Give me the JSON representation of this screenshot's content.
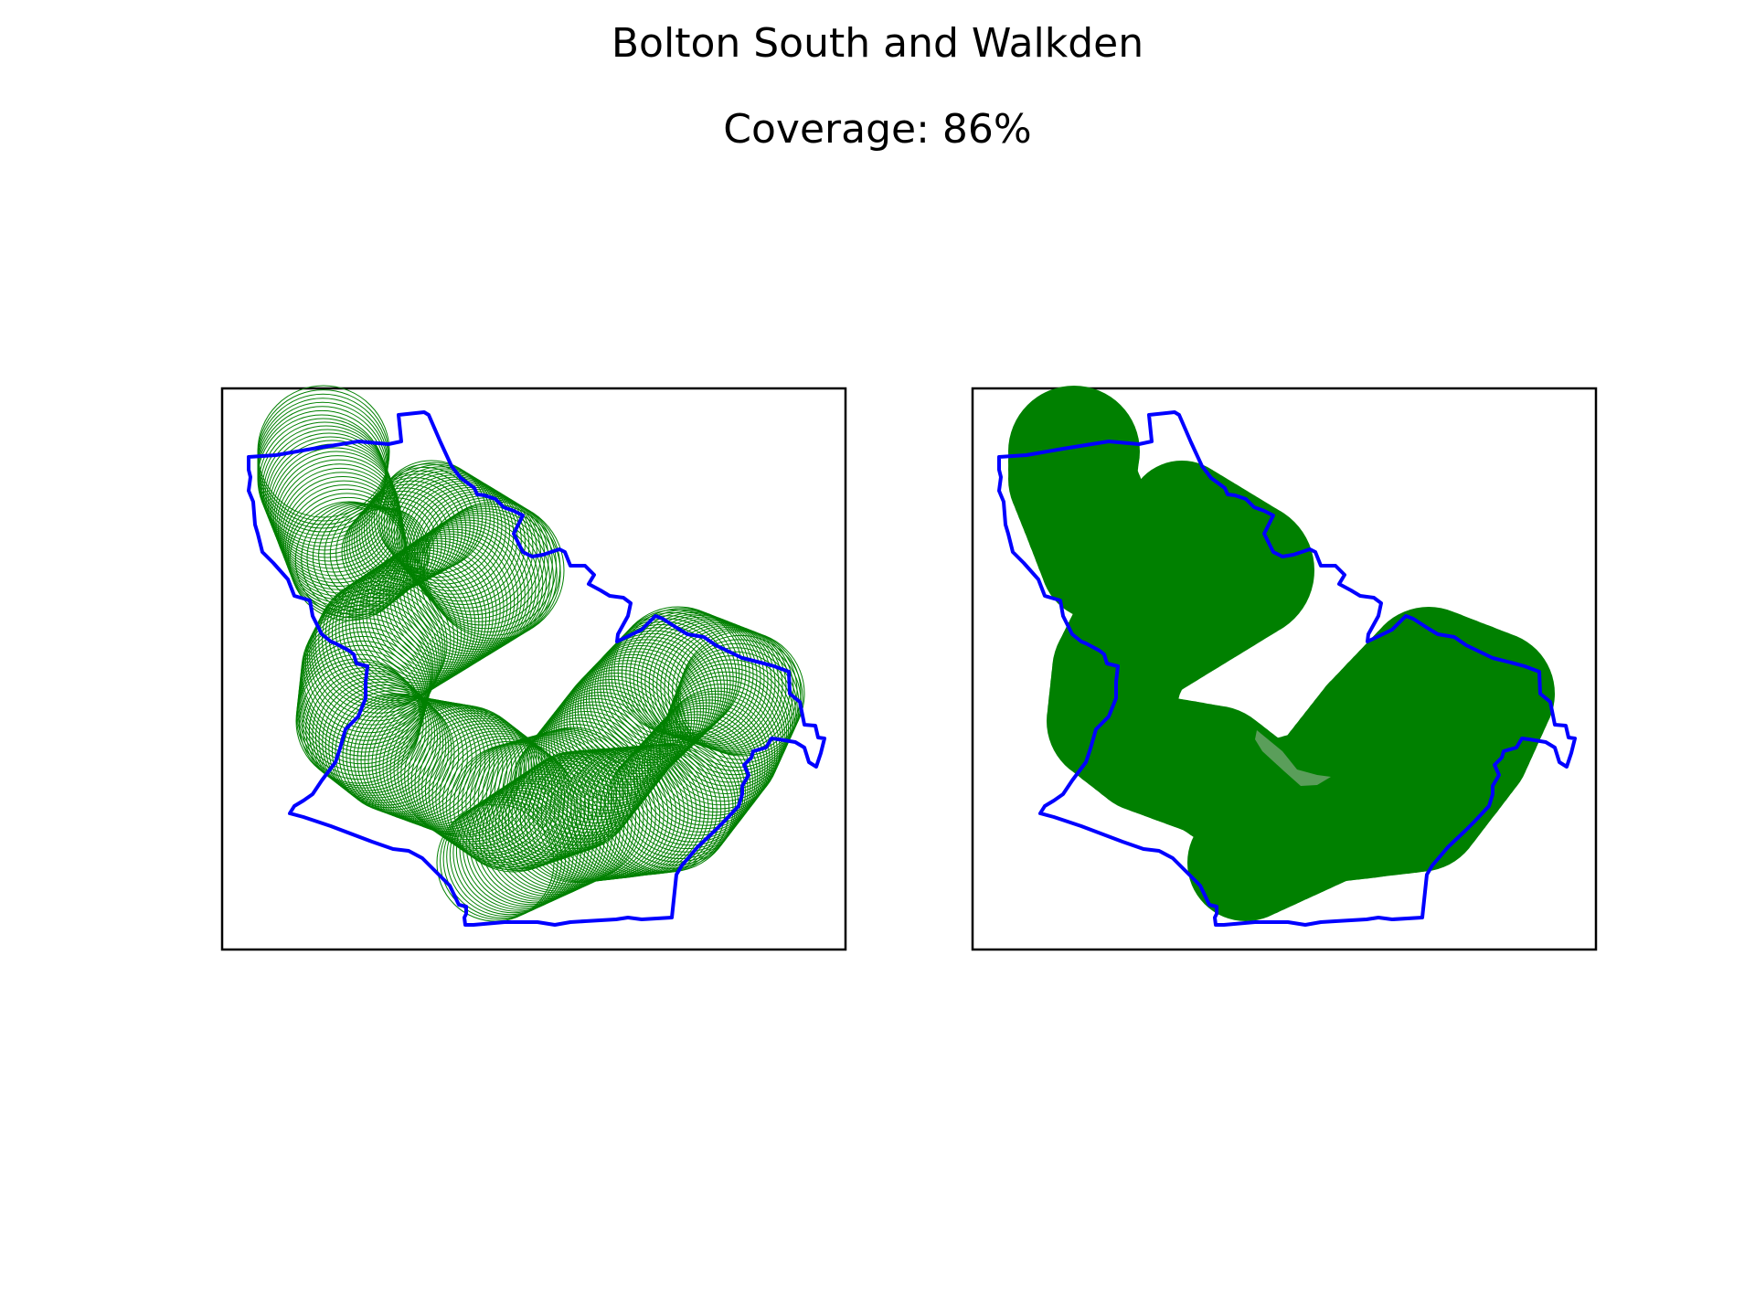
{
  "figure": {
    "title": "Bolton South and Walkden",
    "subtitle": "Coverage: 86%"
  },
  "colors": {
    "boundary": "#0000ff",
    "coverage": "#008000",
    "frame": "#000000",
    "background": "#ffffff"
  },
  "panels": [
    {
      "id": "left",
      "style": "outline-circles",
      "frame": true
    },
    {
      "id": "right",
      "style": "filled-circles",
      "frame": true
    }
  ]
}
